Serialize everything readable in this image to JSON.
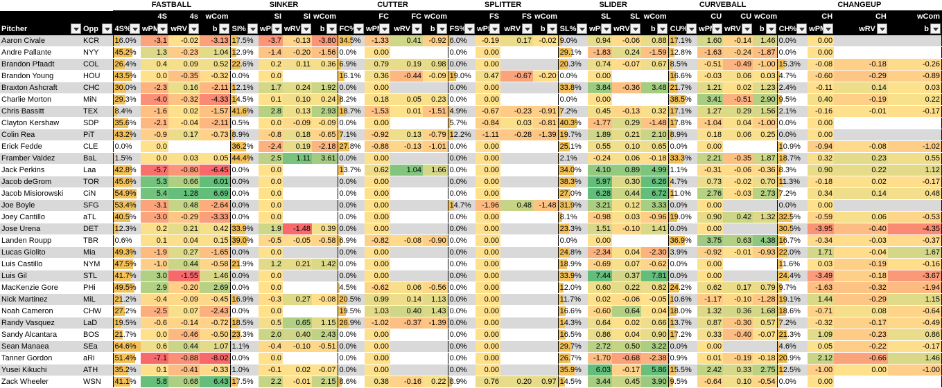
{
  "groups": [
    "FASTBALL",
    "SINKER",
    "CUTTER",
    "SPLITTER",
    "SLIDER",
    "CURVEBALL",
    "CHANGEUP"
  ],
  "subheaders": [
    [
      "4S",
      "4s",
      ""
    ],
    [
      "SI",
      "SI",
      "wCom"
    ],
    [
      "FC",
      "FC",
      "wCom"
    ],
    [
      "FS",
      "FS",
      "wCom"
    ],
    [
      "SL",
      "SL",
      "wCom"
    ],
    [
      "CU",
      "CU",
      "wCom"
    ],
    [
      "CH",
      "CH",
      "wCom"
    ]
  ],
  "fastball_wcom_top": "wCom",
  "pitcher_header": "Pitcher",
  "opp_header": "Opp",
  "column_headers": [
    [
      "4S%",
      "wPM",
      "wRV",
      "b"
    ],
    [
      "SI%",
      "wPM",
      "wRV",
      "b"
    ],
    [
      "FC%",
      "wPM",
      "wRV",
      "b"
    ],
    [
      "FS%",
      "wPM",
      "wRV",
      "b"
    ],
    [
      "SL%",
      "wPM",
      "wRV",
      "b"
    ],
    [
      "CU%",
      "wPM",
      "wRV",
      "b"
    ],
    [
      "CH%",
      "wPM",
      "wRV",
      "b"
    ]
  ],
  "rows": [
    [
      "Aaron Civale",
      "KCR",
      [
        "16.0%",
        "-3.1",
        "-0.02",
        "-3.13"
      ],
      [
        "17.5%",
        "-3.7",
        "-0.13",
        "-3.80"
      ],
      [
        "34.5%",
        "-1.33",
        "0.41",
        "-0.92"
      ],
      [
        "6.0%",
        "-0.19",
        "0.17",
        "-0.02"
      ],
      [
        "9.0%",
        "0.94",
        "-0.06",
        "0.88"
      ],
      [
        "17.1%",
        "1.60",
        "-0.14",
        "1.46"
      ],
      [
        "0.0%",
        "0.00",
        "",
        ""
      ]
    ],
    [
      "Andre Pallante",
      "NYY",
      [
        "45.2%",
        "1.3",
        "-0.23",
        "1.04"
      ],
      [
        "12.9%",
        "-1.4",
        "-0.20",
        "-1.56"
      ],
      [
        "0.0%",
        "0.00",
        "",
        ""
      ],
      [
        "0.0%",
        "0.00",
        "",
        ""
      ],
      [
        "29.1%",
        "-1.83",
        "0.24",
        "-1.59"
      ],
      [
        "12.8%",
        "-1.63",
        "-0.24",
        "-1.87"
      ],
      [
        "0.0%",
        "0.00",
        "",
        ""
      ]
    ],
    [
      "Brandon Pfaadt",
      "COL",
      [
        "26.4%",
        "0.4",
        "0.09",
        "0.52"
      ],
      [
        "22.6%",
        "0.2",
        "0.11",
        "0.36"
      ],
      [
        "6.9%",
        "0.79",
        "0.19",
        "0.98"
      ],
      [
        "0.0%",
        "0.00",
        "",
        ""
      ],
      [
        "20.3%",
        "0.74",
        "-0.07",
        "0.67"
      ],
      [
        "8.5%",
        "-0.51",
        "-0.49",
        "-1.00"
      ],
      [
        "15.3%",
        "-0.08",
        "-0.18",
        "-0.26"
      ]
    ],
    [
      "Brandon Young",
      "HOU",
      [
        "43.5%",
        "0.0",
        "-0.35",
        "-0.32"
      ],
      [
        "0.0%",
        "0.0",
        "",
        ""
      ],
      [
        "16.1%",
        "0.36",
        "-0.44",
        "-0.09"
      ],
      [
        "19.0%",
        "0.47",
        "-0.67",
        "-0.20"
      ],
      [
        "0.0%",
        "0.00",
        "",
        ""
      ],
      [
        "16.6%",
        "-0.03",
        "0.06",
        "0.03"
      ],
      [
        "4.7%",
        "-0.60",
        "-0.29",
        "-0.89"
      ]
    ],
    [
      "Braxton Ashcraft",
      "CHC",
      [
        "30.0%",
        "-2.3",
        "0.16",
        "-2.11"
      ],
      [
        "12.1%",
        "1.7",
        "0.24",
        "1.92"
      ],
      [
        "0.0%",
        "0.00",
        "",
        ""
      ],
      [
        "0.0%",
        "0.00",
        "",
        ""
      ],
      [
        "33.8%",
        "3.84",
        "-0.36",
        "3.48"
      ],
      [
        "21.7%",
        "1.21",
        "0.02",
        "1.23"
      ],
      [
        "2.4%",
        "-0.11",
        "0.14",
        "0.03"
      ]
    ],
    [
      "Charlie Morton",
      "MiN",
      [
        "29.3%",
        "-4.0",
        "-0.32",
        "-4.33"
      ],
      [
        "14.5%",
        "0.1",
        "0.10",
        "0.24"
      ],
      [
        "8.2%",
        "0.18",
        "0.05",
        "0.23"
      ],
      [
        "0.0%",
        "0.00",
        "",
        ""
      ],
      [
        "0.0%",
        "0.00",
        "",
        ""
      ],
      [
        "38.5%",
        "3.41",
        "-0.51",
        "2.90"
      ],
      [
        "9.5%",
        "0.40",
        "-0.19",
        "0.22"
      ]
    ],
    [
      "Chris Bassitt",
      "TEX",
      [
        "8.4%",
        "-1.6",
        "0.02",
        "-1.57"
      ],
      [
        "41.6%",
        "2.8",
        "0.13",
        "2.93"
      ],
      [
        "18.7%",
        "-1.53",
        "0.01",
        "-1.51"
      ],
      [
        "4.9%",
        "-0.67",
        "-0.23",
        "-0.91"
      ],
      [
        "7.2%",
        "0.45",
        "-0.13",
        "0.32"
      ],
      [
        "17.1%",
        "1.27",
        "0.29",
        "1.56"
      ],
      [
        "2.1%",
        "-0.16",
        "-0.01",
        "-0.17"
      ]
    ],
    [
      "Clayton Kershaw",
      "SDP",
      [
        "35.6%",
        "-2.1",
        "-0.04",
        "-2.11"
      ],
      [
        "0.5%",
        "0.0",
        "-0.09",
        "-0.09"
      ],
      [
        "0.0%",
        "0.00",
        "",
        ""
      ],
      [
        "5.7%",
        "-0.84",
        "0.03",
        "-0.81"
      ],
      [
        "40.3%",
        "-1.77",
        "0.29",
        "-1.48"
      ],
      [
        "17.8%",
        "-1.04",
        "0.04",
        "-1.00"
      ],
      [
        "0.0%",
        "0.00",
        "",
        ""
      ]
    ],
    [
      "Colin Rea",
      "PiT",
      [
        "43.2%",
        "-0.9",
        "0.17",
        "-0.73"
      ],
      [
        "8.9%",
        "-0.8",
        "0.18",
        "-0.65"
      ],
      [
        "7.1%",
        "-0.92",
        "0.13",
        "-0.79"
      ],
      [
        "12.2%",
        "-1.11",
        "-0.28",
        "-1.39"
      ],
      [
        "19.7%",
        "1.89",
        "0.21",
        "2.10"
      ],
      [
        "8.9%",
        "0.18",
        "0.06",
        "0.25"
      ],
      [
        "0.0%",
        "0.00",
        "",
        ""
      ]
    ],
    [
      "Erick Fedde",
      "CLE",
      [
        "0.0%",
        "0.0",
        "",
        ""
      ],
      [
        "36.2%",
        "-2.4",
        "0.19",
        "-2.18"
      ],
      [
        "27.8%",
        "-0.88",
        "-0.13",
        "-1.01"
      ],
      [
        "0.0%",
        "0.00",
        "",
        ""
      ],
      [
        "25.1%",
        "0.55",
        "0.10",
        "0.65"
      ],
      [
        "0.0%",
        "0.00",
        "",
        ""
      ],
      [
        "10.9%",
        "-0.94",
        "-0.08",
        "-1.02"
      ]
    ],
    [
      "Framber Valdez",
      "BaL",
      [
        "1.5%",
        "0.0",
        "0.03",
        "0.05"
      ],
      [
        "44.4%",
        "2.5",
        "1.11",
        "3.61"
      ],
      [
        "0.0%",
        "0.00",
        "",
        ""
      ],
      [
        "0.0%",
        "0.00",
        "",
        ""
      ],
      [
        "2.1%",
        "-0.24",
        "0.06",
        "-0.18"
      ],
      [
        "33.3%",
        "2.21",
        "-0.35",
        "1.87"
      ],
      [
        "18.7%",
        "0.32",
        "0.23",
        "0.55"
      ]
    ],
    [
      "Jack Perkins",
      "Laa",
      [
        "42.8%",
        "-5.7",
        "-0.80",
        "-6.45"
      ],
      [
        "0.0%",
        "0.0",
        "",
        ""
      ],
      [
        "13.7%",
        "0.62",
        "1.04",
        "1.66"
      ],
      [
        "0.0%",
        "0.00",
        "",
        ""
      ],
      [
        "34.0%",
        "4.10",
        "0.89",
        "4.99"
      ],
      [
        "1.1%",
        "-0.31",
        "-0.06",
        "-0.36"
      ],
      [
        "8.3%",
        "0.90",
        "0.22",
        "1.12"
      ]
    ],
    [
      "Jacob deGrom",
      "TOR",
      [
        "45.6%",
        "5.3",
        "0.66",
        "6.01"
      ],
      [
        "0.0%",
        "0.0",
        "",
        ""
      ],
      [
        "0.0%",
        "0.00",
        "",
        ""
      ],
      [
        "0.0%",
        "0.00",
        "",
        ""
      ],
      [
        "38.3%",
        "5.97",
        "0.30",
        "6.26"
      ],
      [
        "4.7%",
        "0.73",
        "-0.02",
        "0.70"
      ],
      [
        "11.3%",
        "-0.18",
        "0.02",
        "-0.17"
      ]
    ],
    [
      "Jacob Misiorowski",
      "CiN",
      [
        "54.9%",
        "5.4",
        "1.28",
        "6.69"
      ],
      [
        "0.0%",
        "0.0",
        "",
        ""
      ],
      [
        "0.0%",
        "0.00",
        "",
        ""
      ],
      [
        "0.0%",
        "0.00",
        "",
        ""
      ],
      [
        "27.0%",
        "6.28",
        "0.44",
        "6.72"
      ],
      [
        "11.0%",
        "2.76",
        "-0.03",
        "2.73"
      ],
      [
        "7.2%",
        "0.34",
        "0.14",
        "0.48"
      ]
    ],
    [
      "Joe Boyle",
      "SFG",
      [
        "53.4%",
        "-3.1",
        "0.48",
        "-2.64"
      ],
      [
        "0.0%",
        "0.0",
        "",
        ""
      ],
      [
        "0.0%",
        "0.00",
        "",
        ""
      ],
      [
        "14.7%",
        "-1.96",
        "0.48",
        "-1.48"
      ],
      [
        "31.9%",
        "3.21",
        "0.12",
        "3.33"
      ],
      [
        "0.0%",
        "0.00",
        "",
        ""
      ],
      [
        "0.0%",
        "0.00",
        "",
        ""
      ]
    ],
    [
      "Joey Cantillo",
      "aTL",
      [
        "40.5%",
        "-3.0",
        "-0.29",
        "-3.33"
      ],
      [
        "0.0%",
        "0.0",
        "",
        ""
      ],
      [
        "0.0%",
        "0.00",
        "",
        ""
      ],
      [
        "0.0%",
        "0.00",
        "",
        ""
      ],
      [
        "8.1%",
        "-0.98",
        "0.03",
        "-0.96"
      ],
      [
        "19.0%",
        "0.90",
        "0.42",
        "1.32"
      ],
      [
        "32.5%",
        "-0.59",
        "0.06",
        "-0.53"
      ]
    ],
    [
      "Jose Urena",
      "DET",
      [
        "12.3%",
        "0.2",
        "0.21",
        "0.42"
      ],
      [
        "33.9%",
        "1.9",
        "-1.48",
        "0.39"
      ],
      [
        "0.0%",
        "0.00",
        "",
        ""
      ],
      [
        "0.0%",
        "0.00",
        "",
        ""
      ],
      [
        "23.3%",
        "1.51",
        "-0.10",
        "1.41"
      ],
      [
        "0.0%",
        "0.00",
        "",
        ""
      ],
      [
        "30.5%",
        "-3.95",
        "-0.40",
        "-4.35"
      ]
    ],
    [
      "Landen Roupp",
      "TBR",
      [
        "0.6%",
        "0.1",
        "0.04",
        "0.15"
      ],
      [
        "39.0%",
        "-0.5",
        "-0.05",
        "-0.58"
      ],
      [
        "6.9%",
        "-0.82",
        "-0.08",
        "-0.90"
      ],
      [
        "0.0%",
        "0.00",
        "",
        ""
      ],
      [
        "0.0%",
        "0.00",
        "",
        ""
      ],
      [
        "36.9%",
        "3.75",
        "0.63",
        "4.38"
      ],
      [
        "16.7%",
        "-0.34",
        "-0.03",
        "-0.37"
      ]
    ],
    [
      "Lucas Giolito",
      "Mia",
      [
        "49.3%",
        "-1.9",
        "0.27",
        "-1.65"
      ],
      [
        "0.0%",
        "0.0",
        "",
        ""
      ],
      [
        "0.0%",
        "0.00",
        "",
        ""
      ],
      [
        "0.0%",
        "0.00",
        "",
        ""
      ],
      [
        "24.8%",
        "-2.34",
        "0.04",
        "-2.30"
      ],
      [
        "3.9%",
        "-0.92",
        "-0.01",
        "-0.93"
      ],
      [
        "22.0%",
        "1.71",
        "-0.04",
        "1.67"
      ]
    ],
    [
      "Luis Castillo",
      "NYM",
      [
        "47.5%",
        "-1.0",
        "0.44",
        "-0.58"
      ],
      [
        "21.9%",
        "1.2",
        "0.21",
        "1.42"
      ],
      [
        "0.0%",
        "0.00",
        "",
        ""
      ],
      [
        "0.0%",
        "0.00",
        "",
        ""
      ],
      [
        "18.9%",
        "-0.69",
        "0.07",
        "-0.62"
      ],
      [
        "0.0%",
        "0.00",
        "",
        ""
      ],
      [
        "11.6%",
        "0.03",
        "-0.19",
        "-0.16"
      ]
    ],
    [
      "Luis Gil",
      "STL",
      [
        "41.7%",
        "3.0",
        "-1.55",
        "1.46"
      ],
      [
        "0.0%",
        "0.0",
        "",
        ""
      ],
      [
        "0.0%",
        "0.00",
        "",
        ""
      ],
      [
        "0.0%",
        "0.00",
        "",
        ""
      ],
      [
        "33.9%",
        "7.44",
        "0.37",
        "7.81"
      ],
      [
        "0.0%",
        "0.00",
        "",
        ""
      ],
      [
        "24.4%",
        "-3.49",
        "-0.18",
        "-3.67"
      ]
    ],
    [
      "MacKenzie Gore",
      "PHi",
      [
        "49.5%",
        "2.9",
        "-0.20",
        "2.69"
      ],
      [
        "0.0%",
        "0.0",
        "",
        ""
      ],
      [
        "4.5%",
        "-0.62",
        "0.06",
        "-0.56"
      ],
      [
        "0.0%",
        "0.00",
        "",
        ""
      ],
      [
        "12.0%",
        "0.60",
        "0.22",
        "0.82"
      ],
      [
        "24.2%",
        "0.62",
        "0.17",
        "0.79"
      ],
      [
        "9.7%",
        "-1.63",
        "-0.32",
        "-1.94"
      ]
    ],
    [
      "Nick Martinez",
      "MiL",
      [
        "21.2%",
        "-0.4",
        "-0.09",
        "-0.45"
      ],
      [
        "16.9%",
        "-0.3",
        "0.27",
        "-0.08"
      ],
      [
        "20.5%",
        "0.99",
        "0.14",
        "1.13"
      ],
      [
        "0.0%",
        "0.00",
        "",
        ""
      ],
      [
        "11.7%",
        "0.02",
        "-0.06",
        "-0.05"
      ],
      [
        "10.6%",
        "-1.17",
        "-0.10",
        "-1.28"
      ],
      [
        "19.1%",
        "1.44",
        "-0.29",
        "1.15"
      ]
    ],
    [
      "Noah Cameron",
      "CHW",
      [
        "27.2%",
        "-2.5",
        "0.07",
        "-2.43"
      ],
      [
        "0.0%",
        "0.0",
        "",
        ""
      ],
      [
        "19.5%",
        "1.03",
        "0.40",
        "1.43"
      ],
      [
        "0.0%",
        "0.00",
        "",
        ""
      ],
      [
        "16.6%",
        "-0.60",
        "0.64",
        "0.04"
      ],
      [
        "18.0%",
        "1.32",
        "0.36",
        "1.68"
      ],
      [
        "18.6%",
        "-0.71",
        "0.08",
        "-0.64"
      ]
    ],
    [
      "Randy Vasquez",
      "LaD",
      [
        "19.5%",
        "-0.6",
        "-0.14",
        "-0.72"
      ],
      [
        "18.5%",
        "0.5",
        "0.65",
        "1.15"
      ],
      [
        "26.9%",
        "-1.02",
        "-0.37",
        "-1.39"
      ],
      [
        "0.0%",
        "0.00",
        "",
        ""
      ],
      [
        "14.3%",
        "0.64",
        "0.02",
        "0.66"
      ],
      [
        "13.7%",
        "0.87",
        "-0.30",
        "0.57"
      ],
      [
        "7.2%",
        "-0.32",
        "-0.17",
        "-0.49"
      ]
    ],
    [
      "Sandy Alcantara",
      "BOS",
      [
        "21.7%",
        "0.0",
        "-0.46",
        "-0.50"
      ],
      [
        "23.3%",
        "2.0",
        "0.40",
        "2.43"
      ],
      [
        "0.0%",
        "0.00",
        "",
        ""
      ],
      [
        "0.0%",
        "0.00",
        "",
        ""
      ],
      [
        "16.5%",
        "0.86",
        "0.04",
        "0.90"
      ],
      [
        "17.2%",
        "0.33",
        "-0.40",
        "-0.07"
      ],
      [
        "21.3%",
        "1.09",
        "-0.23",
        "0.86"
      ]
    ],
    [
      "Sean Manaea",
      "SEa",
      [
        "64.6%",
        "0.6",
        "0.44",
        "1.07"
      ],
      [
        "1.1%",
        "-0.4",
        "-0.10",
        "-0.51"
      ],
      [
        "0.0%",
        "0.00",
        "",
        ""
      ],
      [
        "0.0%",
        "0.00",
        "",
        ""
      ],
      [
        "29.7%",
        "2.72",
        "0.50",
        "3.22"
      ],
      [
        "0.0%",
        "0.00",
        "",
        ""
      ],
      [
        "4.6%",
        "0.05",
        "-0.22",
        "-0.17"
      ]
    ],
    [
      "Tanner Gordon",
      "aRi",
      [
        "51.4%",
        "-7.1",
        "-0.88",
        "-8.02"
      ],
      [
        "0.0%",
        "0.0",
        "",
        ""
      ],
      [
        "0.0%",
        "0.00",
        "",
        ""
      ],
      [
        "0.0%",
        "0.00",
        "",
        ""
      ],
      [
        "26.7%",
        "-1.70",
        "-0.68",
        "-2.38"
      ],
      [
        "0.9%",
        "0.01",
        "-0.19",
        "-0.18"
      ],
      [
        "20.9%",
        "2.12",
        "-0.66",
        "1.46"
      ]
    ],
    [
      "Yusei Kikuchi",
      "ATH",
      [
        "35.2%",
        "0.1",
        "-0.41",
        "-0.33"
      ],
      [
        "1.0%",
        "-0.1",
        "0.02",
        "-0.07"
      ],
      [
        "0.0%",
        "0.00",
        "",
        ""
      ],
      [
        "0.0%",
        "0.00",
        "",
        ""
      ],
      [
        "35.9%",
        "6.03",
        "-0.17",
        "5.86"
      ],
      [
        "15.5%",
        "2.42",
        "0.33",
        "2.75"
      ],
      [
        "12.5%",
        "-1.00",
        "0.00",
        "-1.00"
      ]
    ],
    [
      "Zack Wheeler",
      "WSN",
      [
        "41.1%",
        "5.8",
        "0.68",
        "6.43"
      ],
      [
        "17.5%",
        "2.2",
        "-0.01",
        "2.15"
      ],
      [
        "8.6%",
        "0.38",
        "-0.16",
        "0.22"
      ],
      [
        "8.9%",
        "0.76",
        "0.20",
        "0.97"
      ],
      [
        "14.5%",
        "3.44",
        "0.45",
        "3.90"
      ],
      [
        "9.5%",
        "-0.64",
        "0.10",
        "-0.54"
      ],
      [
        "0.0%",
        "0.00",
        "",
        ""
      ]
    ]
  ]
}
